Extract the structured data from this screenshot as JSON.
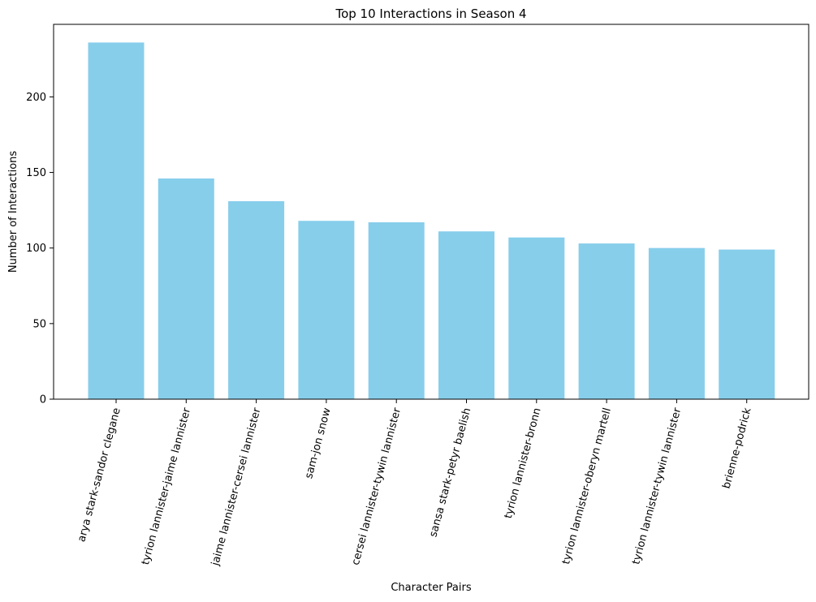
{
  "chart_data": {
    "type": "bar",
    "title": "Top 10 Interactions in Season 4",
    "xlabel": "Character Pairs",
    "ylabel": "Number of Interactions",
    "categories": [
      "arya stark-sandor clegane",
      "tyrion lannister-jaime lannister",
      "jaime lannister-cersei lannister",
      "sam-jon snow",
      "cersei lannister-tywin lannister",
      "sansa stark-petyr baelish",
      "tyrion lannister-bronn",
      "tyrion lannister-oberyn martell",
      "tyrion lannister-tywin lannister",
      "brienne-podrick"
    ],
    "values": [
      236,
      146,
      131,
      118,
      117,
      111,
      107,
      103,
      100,
      99
    ],
    "ylim": [
      0,
      248
    ],
    "yticks": [
      0,
      50,
      100,
      150,
      200
    ],
    "grid": false,
    "legend": "none",
    "bar_color": "#87CEEB"
  }
}
